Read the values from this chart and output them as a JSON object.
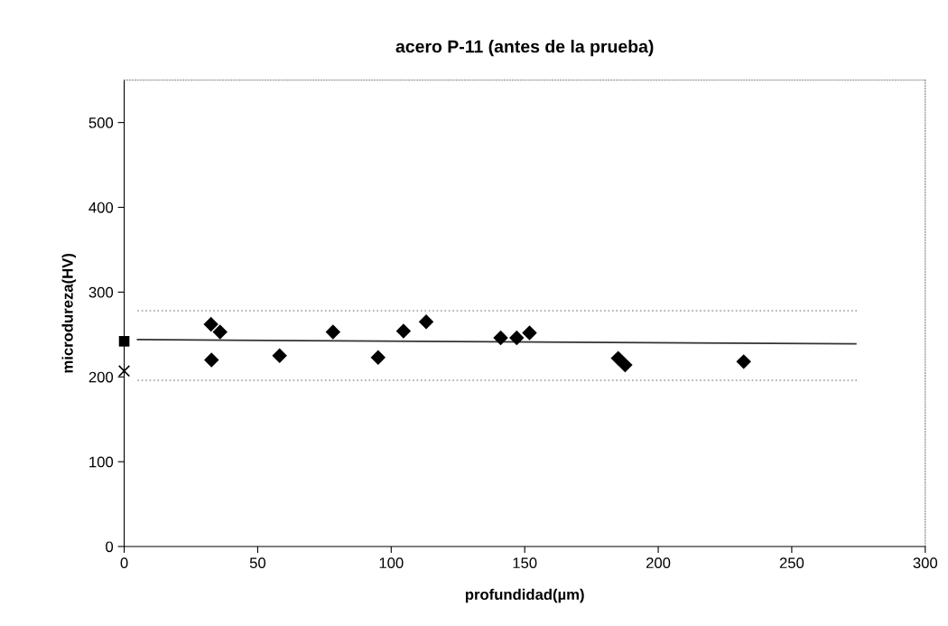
{
  "chart_data": {
    "type": "scatter",
    "title": "acero P-11 (antes de la prueba)",
    "xlabel": "profundidad(µm)",
    "ylabel": "microdureza(HV)",
    "xlim": [
      0,
      300
    ],
    "xticks": [
      0,
      50,
      100,
      150,
      200,
      250,
      300
    ],
    "ylim": [
      0,
      550
    ],
    "yticks": [
      0,
      100,
      200,
      300,
      400,
      500
    ],
    "grid": false,
    "legend": false,
    "series": [
      {
        "marker": "diamond",
        "color": "#000000",
        "x": [
          32.5,
          35.9,
          32.7,
          58.2,
          78.2,
          95.1,
          104.6,
          113.1,
          141,
          147,
          151.8,
          185,
          187.6,
          232
        ],
        "values": [
          262,
          253,
          220,
          225,
          253,
          223,
          254,
          265,
          246,
          246,
          252,
          222,
          214,
          218
        ]
      },
      {
        "marker": "square",
        "color": "#000000",
        "x": [
          0
        ],
        "values": [
          242
        ]
      },
      {
        "marker": "cross",
        "color": "#000000",
        "x": [
          0
        ],
        "values": [
          207
        ]
      },
      {
        "type": "line",
        "marker": "none",
        "line_style": "solid",
        "color": "#333333",
        "x": [
          5,
          274
        ],
        "values": [
          244,
          239
        ]
      },
      {
        "type": "line",
        "marker": "none",
        "line_style": "dotted",
        "color": "#999999",
        "x": [
          5,
          275
        ],
        "values": [
          278,
          278
        ]
      },
      {
        "type": "line",
        "marker": "none",
        "line_style": "dotted",
        "color": "#999999",
        "x": [
          5,
          275
        ],
        "values": [
          196,
          196
        ]
      }
    ]
  }
}
